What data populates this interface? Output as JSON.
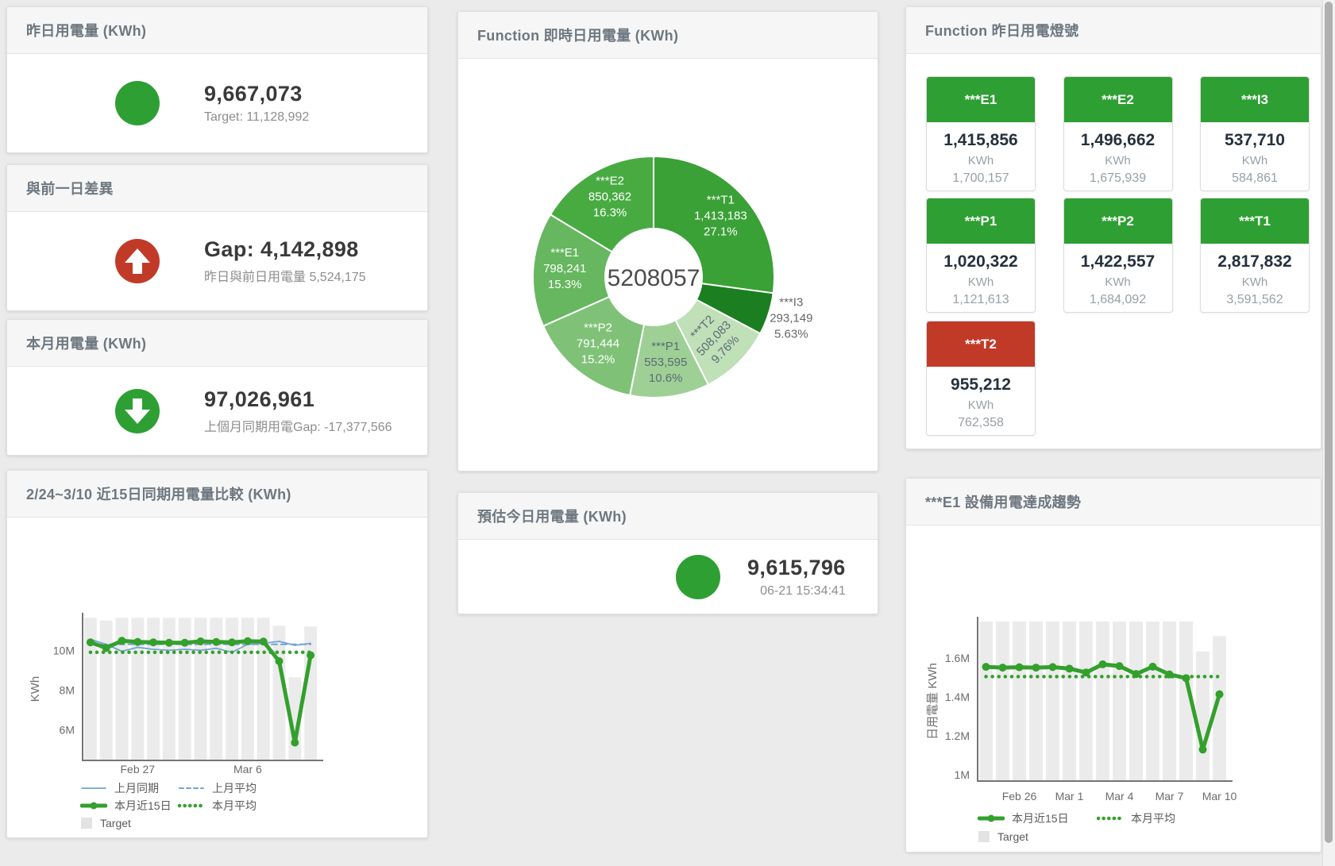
{
  "colors": {
    "green": "#2e9f32",
    "red": "#c13a28",
    "chart_green": "#33a02c",
    "chart_blue": "#72a3d4",
    "bar_gray": "#ebebeb"
  },
  "cards": {
    "yesterday": {
      "title": "昨日用電量 (KWh)",
      "value": "9,667,073",
      "sub": "Target: 11,128,992",
      "icon": "green-circle"
    },
    "day_gap": {
      "title": "與前一日差異",
      "value": "Gap: 4,142,898",
      "sub": "昨日與前日用電量 5,524,175",
      "icon": "red-up-arrow"
    },
    "month": {
      "title": "本月用電量 (KWh)",
      "value": "97,026,961",
      "sub": "上個月同期用電Gap: -17,377,566",
      "icon": "green-down-arrow"
    },
    "today_forecast": {
      "title": "預估今日用電量 (KWh)",
      "value": "9,615,796",
      "sub": "06-21 15:34:41",
      "icon": "green-circle"
    },
    "realtime_donut": {
      "title": "Function 即時日用電量 (KWh)"
    },
    "lights": {
      "title": "Function 昨日用電燈號",
      "unit": "KWh",
      "tiles": [
        {
          "name": "***E1",
          "value": "1,415,856",
          "target": "1,700,157",
          "status": "green"
        },
        {
          "name": "***E2",
          "value": "1,496,662",
          "target": "1,675,939",
          "status": "green"
        },
        {
          "name": "***I3",
          "value": "537,710",
          "target": "584,861",
          "status": "green"
        },
        {
          "name": "***P1",
          "value": "1,020,322",
          "target": "1,121,613",
          "status": "green"
        },
        {
          "name": "***P2",
          "value": "1,422,557",
          "target": "1,684,092",
          "status": "green"
        },
        {
          "name": "***T1",
          "value": "2,817,832",
          "target": "3,591,562",
          "status": "green"
        },
        {
          "name": "***T2",
          "value": "955,212",
          "target": "762,358",
          "status": "red"
        }
      ]
    },
    "compare15": {
      "title": "2/24~3/10 近15日同期用電量比較 (KWh)"
    },
    "e1_trend": {
      "title": "***E1 設備用電達成趨勢"
    }
  },
  "chart_data": [
    {
      "id": "realtime-donut",
      "type": "pie",
      "title": "Function 即時日用電量 (KWh)",
      "center_label": "5208057",
      "total": 5208057,
      "slices": [
        {
          "name": "***T1",
          "value": 1413183,
          "value_label": "1,413,183",
          "pct": "27.1%",
          "color": "#3aa136",
          "label_color": "#ffffff"
        },
        {
          "name": "***I3",
          "value": 293149,
          "value_label": "293,149",
          "pct": "5.63%",
          "color": "#1b7e20",
          "label_color": "#666666",
          "outside": true
        },
        {
          "name": "***T2",
          "value": 508083,
          "value_label": "508,083",
          "pct": "9.76%",
          "color": "#c0e0b8",
          "label_color": "#5d6a74",
          "rotate": -46
        },
        {
          "name": "***P1",
          "value": 553595,
          "value_label": "553,595",
          "pct": "10.6%",
          "color": "#9ed096",
          "label_color": "#5d6a74"
        },
        {
          "name": "***P2",
          "value": 791444,
          "value_label": "791,444",
          "pct": "15.2%",
          "color": "#7fc277",
          "label_color": "#ffffff"
        },
        {
          "name": "***E1",
          "value": 798241,
          "value_label": "798,241",
          "pct": "15.3%",
          "color": "#66b75f",
          "label_color": "#ffffff"
        },
        {
          "name": "***E2",
          "value": 850362,
          "value_label": "850,362",
          "pct": "16.3%",
          "color": "#48ab42",
          "label_color": "#ffffff"
        }
      ]
    },
    {
      "id": "compare-15day",
      "type": "line+bar",
      "title": "2/24~3/10 近15日同期用電量比較 (KWh)",
      "ylabel": "KWh",
      "unit": "millions KWh",
      "ylim": [
        4.45,
        11.65
      ],
      "yticks": [
        {
          "v": 6,
          "label": "6M"
        },
        {
          "v": 8,
          "label": "8M"
        },
        {
          "v": 10,
          "label": "10M"
        }
      ],
      "xticks": [
        {
          "i": 3,
          "label": "Feb 27"
        },
        {
          "i": 10,
          "label": "Mar 6"
        }
      ],
      "bars": {
        "name": "Target",
        "color": "#ebebeb",
        "values": [
          11.64,
          11.5,
          11.64,
          11.64,
          11.64,
          11.64,
          11.64,
          11.64,
          11.64,
          11.64,
          11.64,
          11.64,
          11.24,
          8.64,
          11.2
        ]
      },
      "lines": [
        {
          "name": "上月同期",
          "color": "#72a3d4",
          "width": 1.8,
          "dash": "solid",
          "values": [
            10.55,
            10.3,
            9.95,
            10.15,
            10.05,
            10.0,
            10.05,
            10.0,
            10.1,
            9.9,
            10.3,
            10.35,
            10.45,
            10.25,
            10.35
          ]
        },
        {
          "name": "上月平均",
          "color": "#72a3d4",
          "width": 2,
          "dash": "dashed",
          "values": [
            10.3,
            10.3,
            10.3,
            10.3,
            10.3,
            10.3,
            10.3,
            10.3,
            10.3,
            10.3,
            10.3,
            10.3,
            10.3,
            10.3,
            10.3
          ]
        },
        {
          "name": "本月平均",
          "color": "#33a02c",
          "width": 4.5,
          "dash": "dotted",
          "values": [
            9.9,
            9.9,
            9.9,
            9.9,
            9.9,
            9.9,
            9.9,
            9.9,
            9.9,
            9.9,
            9.9,
            9.9,
            9.9,
            9.9,
            9.9
          ]
        },
        {
          "name": "本月近15日",
          "color": "#33a02c",
          "width": 5,
          "dash": "solid",
          "marker": true,
          "values": [
            10.4,
            10.12,
            10.48,
            10.42,
            10.4,
            10.38,
            10.38,
            10.45,
            10.42,
            10.4,
            10.46,
            10.44,
            9.45,
            5.35,
            9.75
          ]
        }
      ],
      "legend": [
        [
          "上月同期",
          "上月平均"
        ],
        [
          "本月近15日",
          "本月平均"
        ],
        [
          "Target"
        ]
      ]
    },
    {
      "id": "e1-trend",
      "type": "line+bar",
      "title": "***E1 設備用電達成趨勢",
      "ylabel": "日用電量 KWh",
      "unit": "millions KWh",
      "ylim": [
        0.967,
        1.787
      ],
      "yticks": [
        {
          "v": 1.0,
          "label": "1M"
        },
        {
          "v": 1.2,
          "label": "1.2M"
        },
        {
          "v": 1.4,
          "label": "1.4M"
        },
        {
          "v": 1.6,
          "label": "1.6M"
        }
      ],
      "xticks": [
        {
          "i": 2,
          "label": "Feb 26"
        },
        {
          "i": 5,
          "label": "Mar 1"
        },
        {
          "i": 8,
          "label": "Mar 4"
        },
        {
          "i": 11,
          "label": "Mar 7"
        },
        {
          "i": 14,
          "label": "Mar 10"
        }
      ],
      "bars": {
        "name": "Target",
        "color": "#ebebeb",
        "values": [
          1.787,
          1.787,
          1.787,
          1.787,
          1.787,
          1.787,
          1.787,
          1.787,
          1.787,
          1.787,
          1.787,
          1.787,
          1.787,
          1.633,
          1.712
        ]
      },
      "lines": [
        {
          "name": "本月平均",
          "color": "#33a02c",
          "width": 4.5,
          "dash": "dotted",
          "values": [
            1.504,
            1.504,
            1.504,
            1.504,
            1.504,
            1.504,
            1.504,
            1.504,
            1.504,
            1.504,
            1.504,
            1.504,
            1.504,
            1.504,
            1.504
          ]
        },
        {
          "name": "本月近15日",
          "color": "#33a02c",
          "width": 5,
          "dash": "solid",
          "marker": true,
          "values": [
            1.554,
            1.55,
            1.552,
            1.55,
            1.553,
            1.545,
            1.525,
            1.567,
            1.558,
            1.517,
            1.555,
            1.515,
            1.496,
            1.129,
            1.413
          ]
        }
      ],
      "legend": [
        [
          "本月近15日",
          "本月平均"
        ],
        [
          "Target"
        ]
      ]
    }
  ]
}
